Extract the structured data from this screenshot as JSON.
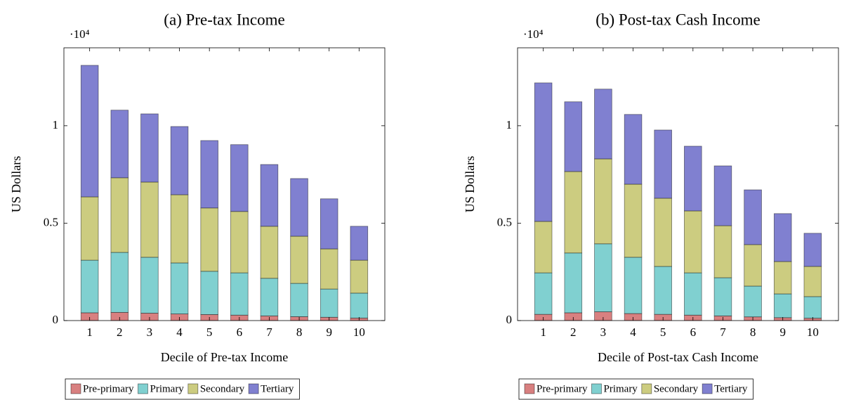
{
  "chart_data": [
    {
      "type": "stacked_bar",
      "title": "(a) Pre-tax Income",
      "x_label": "Decile of Pre-tax Income",
      "y_label": "US Dollars",
      "y_scale_label": "·10⁴",
      "categories": [
        "1",
        "2",
        "3",
        "4",
        "5",
        "6",
        "7",
        "8",
        "9",
        "10"
      ],
      "ylim": [
        0,
        14000
      ],
      "yticks": [
        0,
        {
          "value": 5000,
          "label": "0.5"
        },
        {
          "value": 10000,
          "label": "1"
        }
      ],
      "legend": "bottom",
      "series": [
        {
          "name": "Pre-primary",
          "color": "#d88080",
          "values": [
            400,
            420,
            380,
            340,
            310,
            280,
            240,
            200,
            170,
            130
          ]
        },
        {
          "name": "Primary",
          "color": "#80d0d0",
          "values": [
            2700,
            3080,
            2870,
            2620,
            2220,
            2170,
            1930,
            1710,
            1450,
            1280
          ]
        },
        {
          "name": "Secondary",
          "color": "#cccc80",
          "values": [
            3250,
            3830,
            3860,
            3500,
            3250,
            3150,
            2670,
            2420,
            2060,
            1690
          ]
        },
        {
          "name": "Tertiary",
          "color": "#8080d0",
          "values": [
            6750,
            3470,
            3500,
            3500,
            3460,
            3430,
            3170,
            2960,
            2570,
            1740
          ]
        }
      ]
    },
    {
      "type": "stacked_bar",
      "title": "(b) Post-tax Cash Income",
      "x_label": "Decile of Post-tax Cash Income",
      "y_label": "US Dollars",
      "y_scale_label": "·10⁴",
      "categories": [
        "1",
        "2",
        "3",
        "4",
        "5",
        "6",
        "7",
        "8",
        "9",
        "10"
      ],
      "ylim": [
        0,
        14000
      ],
      "yticks": [
        0,
        {
          "value": 5000,
          "label": "0.5"
        },
        {
          "value": 10000,
          "label": "1"
        }
      ],
      "legend": "bottom",
      "series": [
        {
          "name": "Pre-primary",
          "color": "#d88080",
          "values": [
            320,
            400,
            450,
            360,
            320,
            280,
            240,
            190,
            150,
            120
          ]
        },
        {
          "name": "Primary",
          "color": "#80d0d0",
          "values": [
            2130,
            3070,
            3490,
            2890,
            2460,
            2170,
            1960,
            1580,
            1220,
            1110
          ]
        },
        {
          "name": "Secondary",
          "color": "#cccc80",
          "values": [
            2640,
            4180,
            4360,
            3750,
            3500,
            3180,
            2670,
            2130,
            1660,
            1550
          ]
        },
        {
          "name": "Tertiary",
          "color": "#8080d0",
          "values": [
            7110,
            3580,
            3580,
            3580,
            3500,
            3320,
            3070,
            2810,
            2460,
            1700
          ]
        }
      ]
    }
  ]
}
